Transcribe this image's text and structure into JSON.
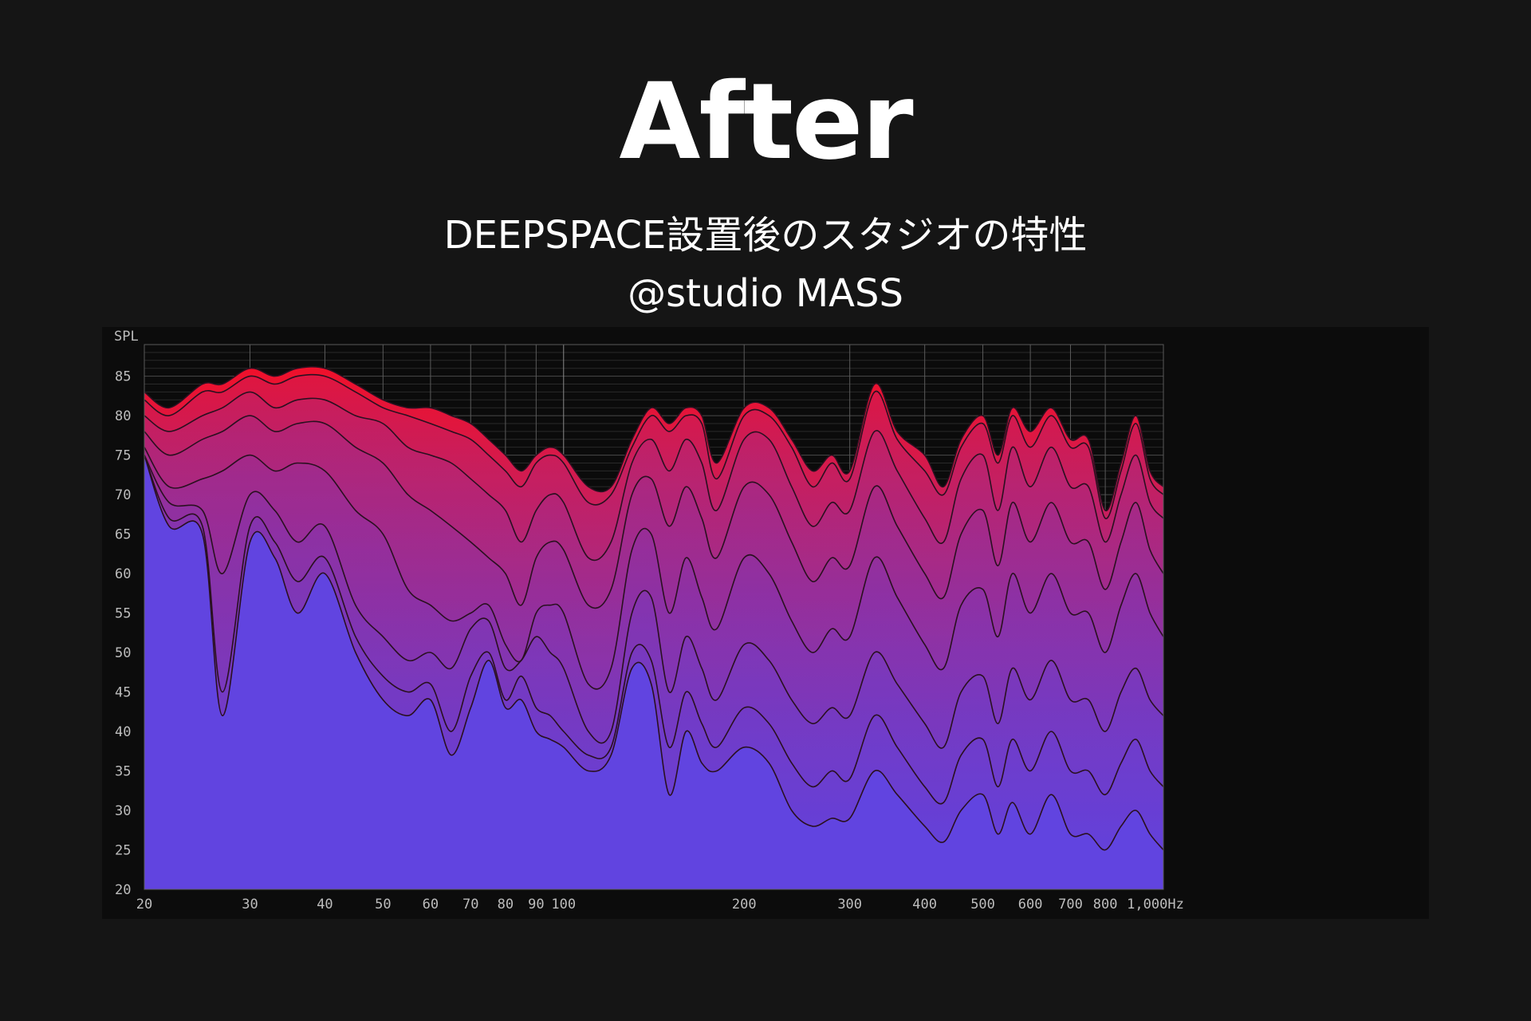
{
  "header": {
    "title": "After",
    "subtitle": "DEEPSPACE設置後のスタジオの特性",
    "credit": "@studio MASS"
  },
  "chart_data": {
    "type": "area",
    "title": "",
    "ylabel": "SPL",
    "xlabel": "",
    "x_scale": "log",
    "xlim": [
      20,
      1000
    ],
    "ylim": [
      20,
      89
    ],
    "y_ticks": [
      20,
      25,
      30,
      35,
      40,
      45,
      50,
      55,
      60,
      65,
      70,
      75,
      80,
      85
    ],
    "x_ticks": [
      {
        "value": 20,
        "label": "20"
      },
      {
        "value": 30,
        "label": "30"
      },
      {
        "value": 40,
        "label": "40"
      },
      {
        "value": 50,
        "label": "50"
      },
      {
        "value": 60,
        "label": "60"
      },
      {
        "value": 70,
        "label": "70"
      },
      {
        "value": 80,
        "label": "80"
      },
      {
        "value": 90,
        "label": "90"
      },
      {
        "value": 100,
        "label": "100"
      },
      {
        "value": 200,
        "label": "200"
      },
      {
        "value": 300,
        "label": "300"
      },
      {
        "value": 400,
        "label": "400"
      },
      {
        "value": 500,
        "label": "500"
      },
      {
        "value": 600,
        "label": "600"
      },
      {
        "value": 700,
        "label": "700"
      },
      {
        "value": 800,
        "label": "800"
      },
      {
        "value": 1000,
        "label": "1,000Hz"
      }
    ],
    "grid": true,
    "colors": {
      "top": "#f0102a",
      "bottom": "#6144e0",
      "line": "#2a1020",
      "background": "#0c0c0c",
      "grid": "#5a5a5a"
    },
    "x": [
      20,
      22,
      25,
      27,
      30,
      33,
      36,
      40,
      45,
      50,
      55,
      60,
      65,
      70,
      75,
      80,
      85,
      90,
      95,
      100,
      110,
      120,
      130,
      140,
      150,
      160,
      170,
      180,
      200,
      220,
      240,
      260,
      280,
      300,
      330,
      360,
      400,
      430,
      460,
      500,
      530,
      560,
      600,
      650,
      700,
      750,
      800,
      850,
      900,
      950,
      1000
    ],
    "series": [
      {
        "values": [
          83,
          81,
          84,
          84,
          86,
          85,
          86,
          86,
          84,
          82,
          81,
          81,
          80,
          79,
          77,
          75,
          73,
          75,
          76,
          75,
          71,
          71,
          77,
          81,
          79,
          81,
          80,
          74,
          81,
          81,
          77,
          73,
          75,
          73,
          84,
          78,
          75,
          71,
          77,
          80,
          75,
          81,
          78,
          81,
          77,
          77,
          68,
          74,
          80,
          73,
          71
        ]
      },
      {
        "values": [
          82,
          80,
          83,
          83,
          85,
          84,
          85,
          85,
          83,
          81,
          80,
          79,
          78,
          77,
          75,
          73,
          71,
          74,
          75,
          74,
          69,
          70,
          76,
          80,
          78,
          80,
          79,
          72,
          80,
          80,
          76,
          71,
          74,
          72,
          83,
          77,
          73,
          70,
          76,
          79,
          74,
          80,
          76,
          80,
          76,
          76,
          67,
          73,
          79,
          72,
          70
        ]
      },
      {
        "values": [
          80,
          78,
          80,
          81,
          83,
          81,
          82,
          82,
          80,
          79,
          76,
          75,
          74,
          72,
          70,
          68,
          64,
          68,
          70,
          69,
          62,
          64,
          74,
          77,
          73,
          77,
          74,
          68,
          77,
          77,
          71,
          66,
          69,
          68,
          78,
          73,
          67,
          64,
          72,
          75,
          68,
          76,
          71,
          76,
          71,
          71,
          64,
          70,
          75,
          69,
          67
        ]
      },
      {
        "values": [
          78,
          75,
          77,
          78,
          80,
          78,
          79,
          79,
          76,
          74,
          70,
          68,
          66,
          64,
          62,
          60,
          56,
          62,
          64,
          63,
          56,
          58,
          70,
          72,
          66,
          71,
          67,
          62,
          71,
          70,
          64,
          59,
          62,
          61,
          71,
          66,
          60,
          57,
          65,
          68,
          61,
          69,
          64,
          69,
          64,
          64,
          58,
          64,
          69,
          63,
          60
        ]
      },
      {
        "values": [
          76,
          71,
          72,
          73,
          75,
          73,
          74,
          73,
          68,
          65,
          58,
          56,
          54,
          55,
          56,
          51,
          49,
          55,
          56,
          55,
          46,
          48,
          63,
          65,
          55,
          62,
          57,
          53,
          62,
          60,
          54,
          50,
          53,
          52,
          62,
          57,
          51,
          48,
          56,
          58,
          52,
          60,
          55,
          60,
          55,
          55,
          50,
          56,
          60,
          55,
          52
        ]
      },
      {
        "values": [
          75,
          69,
          68,
          60,
          70,
          68,
          64,
          66,
          56,
          52,
          49,
          50,
          48,
          53,
          54,
          48,
          49,
          52,
          50,
          48,
          40,
          40,
          55,
          57,
          45,
          52,
          48,
          44,
          51,
          49,
          44,
          41,
          43,
          42,
          50,
          46,
          41,
          38,
          45,
          47,
          41,
          48,
          44,
          49,
          44,
          44,
          40,
          45,
          48,
          44,
          42
        ]
      },
      {
        "values": [
          75,
          67,
          66,
          45,
          66,
          64,
          59,
          62,
          52,
          47,
          45,
          46,
          40,
          47,
          50,
          44,
          47,
          43,
          42,
          40,
          37,
          38,
          50,
          49,
          38,
          45,
          41,
          38,
          43,
          41,
          36,
          33,
          35,
          34,
          42,
          38,
          33,
          31,
          37,
          39,
          33,
          39,
          35,
          40,
          35,
          35,
          32,
          36,
          39,
          35,
          33
        ]
      },
      {
        "values": [
          75,
          66,
          65,
          42,
          64,
          62,
          55,
          60,
          50,
          44,
          42,
          44,
          37,
          43,
          49,
          43,
          44,
          40,
          39,
          38,
          35,
          37,
          48,
          46,
          32,
          40,
          36,
          35,
          38,
          36,
          30,
          28,
          29,
          29,
          35,
          32,
          28,
          26,
          30,
          32,
          27,
          31,
          27,
          32,
          27,
          27,
          25,
          28,
          30,
          27,
          25
        ]
      }
    ]
  }
}
